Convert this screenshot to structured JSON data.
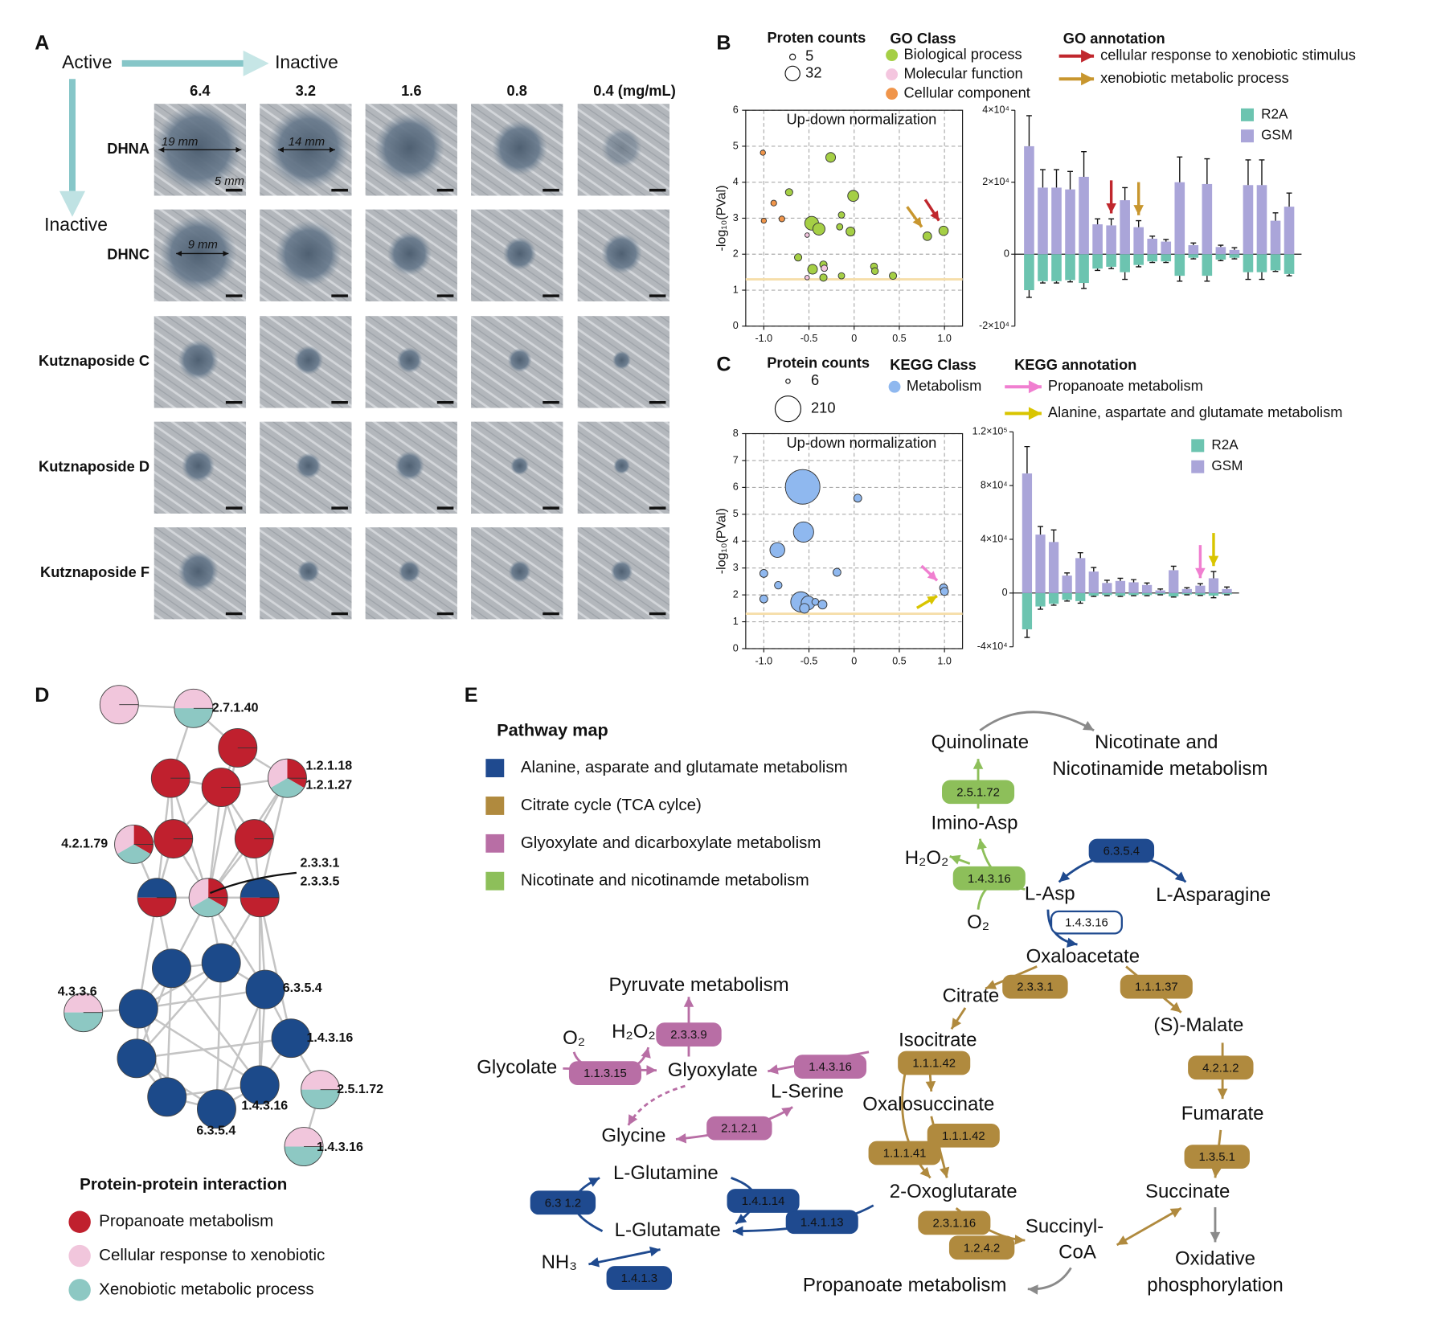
{
  "panel_labels": [
    "A",
    "B",
    "C",
    "D",
    "E"
  ],
  "panel_a": {
    "active": "Active",
    "inactive_x": "Inactive",
    "inactive_y": "Inactive",
    "concentrations": [
      "6.4",
      "3.2",
      "1.6",
      "0.8",
      "0.4 (mg/mL)"
    ],
    "compounds": [
      "DHNA",
      "DHNC",
      "Kutznaposide C",
      "Kutznaposide D",
      "Kutznaposide F"
    ],
    "annotations": [
      "19 mm",
      "14 mm",
      "5 mm",
      "9 mm"
    ]
  },
  "chart_data": [
    {
      "type": "scatter",
      "title": "Up-down normalization",
      "y_label": "-log₁₀(PVal)",
      "xlim": [
        -1.2,
        1.2
      ],
      "ylim": [
        0,
        6
      ],
      "xticks": [
        {
          "value": -1,
          "label": "-1.0"
        },
        -0.5,
        0,
        0.5,
        {
          "value": 1,
          "label": "1.0"
        }
      ],
      "yticks": [
        0,
        1,
        2,
        3,
        4,
        5,
        6
      ],
      "grid": true,
      "threshold": 1.3,
      "threshold_color": "#f6deaa",
      "size_title": "Proten counts",
      "size_legend": [
        5,
        32
      ],
      "legend_title": "GO Class",
      "series": [
        {
          "name": "Biological process",
          "color": "#a5cf45",
          "x": [
            -0.26,
            -0.72,
            -0.01,
            -0.47,
            -0.39,
            -0.14,
            -0.16,
            -0.04,
            -0.62,
            -0.46,
            -0.34,
            -0.34,
            -0.14,
            0.22,
            0.23,
            0.43,
            0.81,
            0.99
          ],
          "values": [
            4.69,
            3.72,
            3.62,
            2.86,
            2.7,
            3.09,
            2.76,
            2.63,
            1.91,
            1.58,
            1.71,
            1.35,
            1.4,
            1.66,
            1.53,
            1.4,
            2.5,
            2.65
          ],
          "sizes": [
            14,
            8,
            18,
            28,
            22,
            6,
            6,
            12,
            8,
            14,
            8,
            8,
            6,
            7,
            7,
            8,
            11,
            13
          ]
        },
        {
          "name": "Molecular function",
          "color": "#f4c6df",
          "x": [
            -0.52,
            -0.33,
            -0.52
          ],
          "values": [
            2.53,
            1.61,
            1.35
          ],
          "sizes": [
            3,
            6,
            3
          ]
        },
        {
          "name": "Cellular component",
          "color": "#f0954a",
          "x": [
            -1.01,
            -0.89,
            -1.0,
            -0.8
          ],
          "values": [
            4.82,
            3.42,
            2.93,
            2.98
          ],
          "sizes": [
            4,
            5,
            4,
            5
          ]
        }
      ],
      "annotation_title": "GO annotation",
      "annotations": [
        {
          "label": "cellular response to xenobiotic stimulus",
          "color": "#c0272d",
          "series": 0,
          "index": 17
        },
        {
          "label": "xenobiotic metabolic process",
          "color": "#c8962e",
          "series": 0,
          "index": 16
        }
      ]
    },
    {
      "type": "bar",
      "ylim": [
        -20000,
        40000
      ],
      "yticks": [
        {
          "value": -20000,
          "label": "-2×10⁴"
        },
        0,
        {
          "value": 20000,
          "label": "2×10⁴"
        },
        {
          "value": 40000,
          "label": "4×10⁴"
        }
      ],
      "series": [
        {
          "name": "R2A",
          "color": "#6cc4b0",
          "values": [
            -10000,
            -7500,
            -7500,
            -7200,
            -8000,
            -4000,
            -3500,
            -5000,
            -3000,
            -2000,
            -2000,
            -6000,
            -1000,
            -6000,
            -1500,
            -1000,
            -5000,
            -5000,
            -4500,
            -5500
          ],
          "errors": [
            2000,
            500,
            500,
            500,
            1500,
            500,
            500,
            2000,
            500,
            300,
            300,
            1500,
            300,
            1500,
            300,
            300,
            2000,
            2000,
            300,
            500
          ]
        },
        {
          "name": "GSM",
          "color": "#aaa5d9",
          "values": [
            30000,
            18500,
            18500,
            18000,
            21500,
            8300,
            8000,
            15000,
            7500,
            4300,
            3500,
            20000,
            2500,
            19500,
            2000,
            1200,
            19200,
            19200,
            9300,
            13200
          ],
          "errors": [
            8500,
            5000,
            5000,
            5000,
            7000,
            1500,
            1800,
            3500,
            1800,
            700,
            600,
            7000,
            600,
            7000,
            500,
            600,
            7000,
            7000,
            2200,
            3800
          ]
        }
      ],
      "arrows": [
        {
          "series": 1,
          "index": 6,
          "color": "#c0272d"
        },
        {
          "series": 1,
          "index": 8,
          "color": "#c8962e"
        }
      ]
    },
    {
      "type": "scatter",
      "title": "Up-down normalization",
      "y_label": "-log₁₀(PVal)",
      "xlim": [
        -1.2,
        1.2
      ],
      "ylim": [
        0,
        8
      ],
      "xticks": [
        {
          "value": -1,
          "label": "-1.0"
        },
        -0.5,
        0,
        0.5,
        {
          "value": 1,
          "label": "1.0"
        }
      ],
      "yticks": [
        0,
        1,
        2,
        3,
        4,
        5,
        6,
        7,
        8
      ],
      "grid": true,
      "threshold": 1.3,
      "threshold_color": "#f6deaa",
      "size_title": "Protein counts",
      "size_legend": [
        6,
        210
      ],
      "legend_title": "KEGG Class",
      "series": [
        {
          "name": "Metabolism",
          "color": "#8fb8ef",
          "x": [
            -0.57,
            0.04,
            -0.56,
            -0.85,
            -1.0,
            -0.84,
            -0.19,
            -1.0,
            -0.59,
            -0.51,
            -0.43,
            -0.35,
            -0.55,
            0.99,
            1.0
          ],
          "values": [
            6.02,
            5.6,
            4.34,
            3.67,
            2.8,
            2.36,
            2.84,
            1.85,
            1.74,
            1.7,
            1.74,
            1.64,
            1.5,
            2.26,
            2.13
          ],
          "sizes": [
            380,
            20,
            130,
            70,
            20,
            18,
            20,
            20,
            130,
            60,
            15,
            25,
            30,
            20,
            20
          ]
        }
      ],
      "annotation_title": "KEGG annotation",
      "annotations": [
        {
          "label": "Propanoate metabolism",
          "color": "#f07fd0",
          "series": 0,
          "index": 13
        },
        {
          "label": "Alanine, aspartate and glutamate metabolism",
          "color": "#d9c500",
          "series": 0,
          "index": 14
        }
      ]
    },
    {
      "type": "bar",
      "ylim": [
        -40000,
        120000
      ],
      "yticks": [
        {
          "value": -40000,
          "label": "-4×10⁴"
        },
        0,
        {
          "value": 40000,
          "label": "4×10⁴"
        },
        {
          "value": 80000,
          "label": "8×10⁴"
        },
        {
          "value": 120000,
          "label": "1.2×10⁵"
        }
      ],
      "series": [
        {
          "name": "R2A",
          "color": "#6cc4b0",
          "values": [
            -27000,
            -10000,
            -8000,
            -5000,
            -6000,
            -2000,
            -1500,
            -2000,
            -1500,
            -1500,
            -1000,
            -2500,
            -1000,
            -1500,
            -2000,
            -1000
          ],
          "errors": [
            6000,
            2000,
            1000,
            1000,
            1500,
            500,
            500,
            500,
            500,
            500,
            300,
            500,
            300,
            300,
            1500,
            300
          ]
        },
        {
          "name": "GSM",
          "color": "#aaa5d9",
          "values": [
            89000,
            43500,
            38000,
            13000,
            26000,
            16000,
            7500,
            9000,
            8000,
            6000,
            2000,
            17000,
            3000,
            5500,
            11000,
            3000
          ],
          "errors": [
            20000,
            6000,
            9000,
            2000,
            4000,
            3000,
            2000,
            2000,
            2000,
            1500,
            1000,
            3000,
            1000,
            1500,
            5000,
            1500
          ]
        }
      ],
      "arrows": [
        {
          "series": 1,
          "index": 13,
          "color": "#f07fd0"
        },
        {
          "series": 1,
          "index": 14,
          "color": "#d9c500"
        }
      ]
    }
  ],
  "panel_d": {
    "labels": [
      "2.7.1.40",
      "1.2.1.18",
      "1.2.1.27",
      "4.2.1.79",
      "2.3.3.1",
      "2.3.3.5",
      "4.3.3.6",
      "6.3.5.4",
      "1.4.3.16",
      "2.5.1.72",
      "1.4.3.16",
      "6.3.5.4",
      "1.4.3.16"
    ],
    "legend_title": "Protein-protein interaction",
    "legend": [
      {
        "label": "Propanoate metabolism",
        "color": "#c0202e"
      },
      {
        "label": "Cellular response to xenobiotic",
        "color": "#f1c6dc"
      },
      {
        "label": "Xenobiotic metabolic process",
        "color": "#8dc8c3"
      }
    ]
  },
  "panel_e": {
    "legend_title": "Pathway map",
    "legend": [
      {
        "label": "Alanine, asparate and glutamate metabolism",
        "color": "#1f4a8f"
      },
      {
        "label": "Citrate cycle (TCA cylce)",
        "color": "#b08a3e"
      },
      {
        "label": "Glyoxylate and dicarboxylate metabolism",
        "color": "#b86ea5"
      },
      {
        "label": "Nicotinate and nicotinamde metabolism",
        "color": "#8dbf5a"
      }
    ],
    "metabolites": [
      "Quinolinate",
      "Nicotinate and",
      "Nicotinamide metabolism",
      "Imino-Asp",
      "H₂O₂",
      "L-Asp",
      "L-Asparagine",
      "O₂",
      "Oxaloacetate",
      "Citrate",
      "(S)-Malate",
      "Isocitrate",
      "Pyruvate metabolism",
      "O₂",
      "H₂O₂",
      "Glycolate",
      "Glyoxylate",
      "L-Serine",
      "Oxalosuccinate",
      "Fumarate",
      "Glycine",
      "L-Glutamine",
      "2-Oxoglutarate",
      "Succinate",
      "Succinyl-",
      "CoA",
      "L-Glutamate",
      "NH₃",
      "Propanoate metabolism",
      "Oxidative",
      "phosphorylation"
    ],
    "enzymes": [
      "2.5.1.72",
      "1.4.3.16",
      "6.3.5.4",
      "1.4.3.16",
      "2.3.3.1",
      "1.1.1.37",
      "2.3.3.9",
      "1.4.3.16",
      "1.1.3.15",
      "1.1.1.42",
      "4.2.1.2",
      "1.1.1.42",
      "2.1.2.1",
      "1.1.1.41",
      "1.3.5.1",
      "6.3 1.2",
      "1.4.1.14",
      "1.4.1.13",
      "2.3.1.16",
      "1.2.4.2",
      "1.4.1.3"
    ]
  }
}
